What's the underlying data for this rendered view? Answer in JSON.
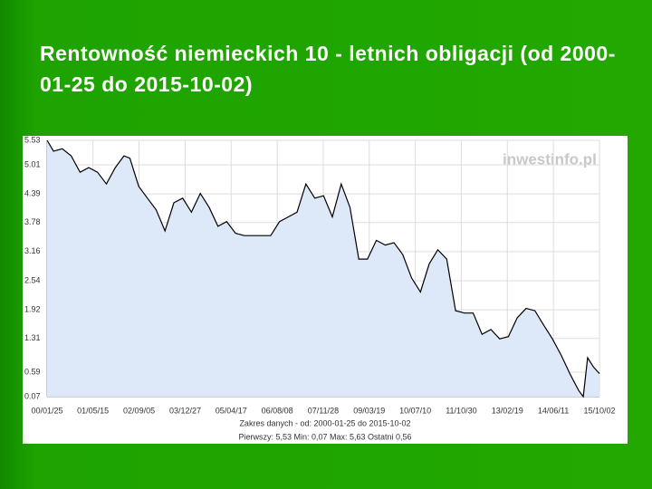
{
  "chart_data": {
    "type": "line",
    "title": "Rentowność niemieckich 10 - letnich obligacji (od 2000-01-25 do 2015-10-02)",
    "logo": "inwestinfo.pl",
    "range_text": "Zakres danych - od: 2000-01-25 do 2015-10-02",
    "stats_text": "Pierwszy: 5,53   Min: 0,07   Max: 5,63   Ostatni 0,56",
    "x": [
      "2000-01-25",
      "2000-04-01",
      "2000-07-01",
      "2000-10-01",
      "2001-01-01",
      "2001-04-01",
      "2001-07-01",
      "2001-10-01",
      "2002-01-01",
      "2002-04-01",
      "2002-06-01",
      "2002-09-01",
      "2002-12-01",
      "2003-03-01",
      "2003-06-01",
      "2003-09-01",
      "2003-12-01",
      "2004-03-01",
      "2004-06-01",
      "2004-09-01",
      "2004-12-01",
      "2005-03-01",
      "2005-06-01",
      "2005-09-01",
      "2005-12-01",
      "2006-03-01",
      "2006-06-01",
      "2006-09-01",
      "2006-12-01",
      "2007-03-01",
      "2007-06-01",
      "2007-09-01",
      "2007-12-01",
      "2008-03-01",
      "2008-06-01",
      "2008-09-01",
      "2008-12-01",
      "2009-03-01",
      "2009-06-01",
      "2009-09-01",
      "2009-12-01",
      "2010-03-01",
      "2010-06-01",
      "2010-09-01",
      "2010-12-01",
      "2011-03-01",
      "2011-06-01",
      "2011-09-01",
      "2011-12-01",
      "2012-03-01",
      "2012-06-01",
      "2012-09-01",
      "2012-12-01",
      "2013-03-01",
      "2013-06-01",
      "2013-09-01",
      "2013-12-01",
      "2014-03-01",
      "2014-06-01",
      "2014-09-01",
      "2014-12-01",
      "2015-03-01",
      "2015-04-17",
      "2015-06-01",
      "2015-08-01",
      "2015-10-02"
    ],
    "series": [
      {
        "color": "#000000",
        "fill": "#dde8f8",
        "values": [
          5.53,
          5.3,
          5.35,
          5.2,
          4.85,
          4.95,
          4.85,
          4.6,
          4.95,
          5.2,
          5.15,
          4.55,
          4.3,
          4.05,
          3.6,
          4.2,
          4.3,
          4.0,
          4.4,
          4.1,
          3.7,
          3.8,
          3.55,
          3.5,
          3.5,
          3.5,
          3.5,
          3.8,
          3.9,
          4.0,
          4.6,
          4.3,
          4.35,
          3.9,
          4.6,
          4.1,
          3.0,
          3.0,
          3.4,
          3.3,
          3.35,
          3.1,
          2.6,
          2.3,
          2.9,
          3.2,
          3.0,
          1.9,
          1.85,
          1.85,
          1.4,
          1.5,
          1.3,
          1.35,
          1.75,
          1.95,
          1.9,
          1.6,
          1.3,
          0.95,
          0.55,
          0.2,
          0.07,
          0.9,
          0.7,
          0.56
        ]
      }
    ],
    "xlim": [
      "2000-01-25",
      "2015-10-02"
    ],
    "xticks": [
      {
        "value": "2000-01-25",
        "label": "00/01/25"
      },
      {
        "value": "2001-05-15",
        "label": "01/05/15"
      },
      {
        "value": "2002-09-05",
        "label": "02/09/05"
      },
      {
        "value": "2003-12-27",
        "label": "03/12/27"
      },
      {
        "value": "2005-04-17",
        "label": "05/04/17"
      },
      {
        "value": "2006-08-08",
        "label": "06/08/08"
      },
      {
        "value": "2007-11-28",
        "label": "07/11/28"
      },
      {
        "value": "2009-03-19",
        "label": "09/03/19"
      },
      {
        "value": "2010-07-10",
        "label": "10/07/10"
      },
      {
        "value": "2011-10-30",
        "label": "11/10/30"
      },
      {
        "value": "2013-02-19",
        "label": "13/02/19"
      },
      {
        "value": "2014-06-11",
        "label": "14/06/11"
      },
      {
        "value": "2015-10-02",
        "label": "15/10/02"
      }
    ],
    "ylim": [
      0.07,
      5.53
    ],
    "yticks": [
      0.07,
      0.59,
      1.31,
      1.92,
      2.54,
      3.16,
      3.78,
      4.39,
      5.01,
      5.53
    ],
    "grid": true
  }
}
